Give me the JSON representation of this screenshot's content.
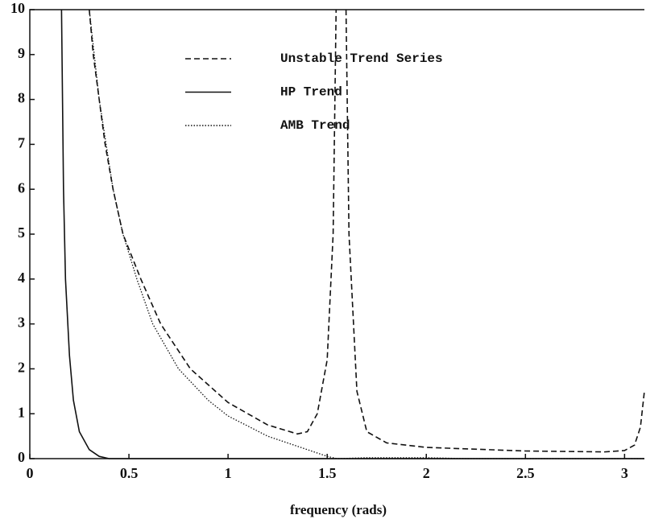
{
  "chart_data": {
    "type": "line",
    "xlabel": "frequency (rads)",
    "xlim": [
      0,
      3.1
    ],
    "ylim": [
      0,
      10
    ],
    "xticks": [
      0,
      0.5,
      1,
      1.5,
      2,
      2.5,
      3
    ],
    "yticks": [
      0,
      1,
      2,
      3,
      4,
      5,
      6,
      7,
      8,
      9,
      10
    ],
    "legend": "top",
    "series": [
      {
        "name": "Unstable Trend Series",
        "color": "#111111",
        "style": "dashed",
        "x": [
          0.3,
          0.32,
          0.35,
          0.38,
          0.42,
          0.47,
          0.56,
          0.66,
          0.81,
          1.0,
          1.2,
          1.35,
          1.4,
          1.45,
          1.5,
          1.53,
          1.545,
          1.57,
          1.595,
          1.61,
          1.65,
          1.7,
          1.8,
          2.0,
          2.5,
          2.9,
          3.0,
          3.05,
          3.08,
          3.1
        ],
        "values": [
          10,
          9,
          8,
          7,
          6,
          5,
          4,
          3,
          2,
          1.25,
          0.75,
          0.55,
          0.6,
          1.0,
          2.2,
          5,
          10,
          null,
          10,
          5,
          1.5,
          0.6,
          0.35,
          0.25,
          0.17,
          0.15,
          0.18,
          0.3,
          0.7,
          1.5
        ]
      },
      {
        "name": "HP Trend",
        "color": "#111111",
        "style": "solid",
        "x": [
          0.16,
          0.17,
          0.18,
          0.2,
          0.22,
          0.25,
          0.3,
          0.35,
          0.4,
          3.1
        ],
        "values": [
          10,
          6,
          4,
          2.3,
          1.3,
          0.6,
          0.2,
          0.05,
          0,
          0
        ]
      },
      {
        "name": "AMB Trend",
        "color": "#111111",
        "style": "dotted",
        "x": [
          0.3,
          0.35,
          0.42,
          0.47,
          0.54,
          0.62,
          0.75,
          0.9,
          1.0,
          1.2,
          1.4,
          1.5,
          1.55,
          1.7,
          2.0,
          2.2,
          3.1
        ],
        "values": [
          10,
          8,
          6,
          5,
          4,
          3,
          2,
          1.3,
          0.95,
          0.5,
          0.2,
          0.05,
          0,
          0.02,
          0.02,
          0,
          0
        ]
      }
    ]
  }
}
